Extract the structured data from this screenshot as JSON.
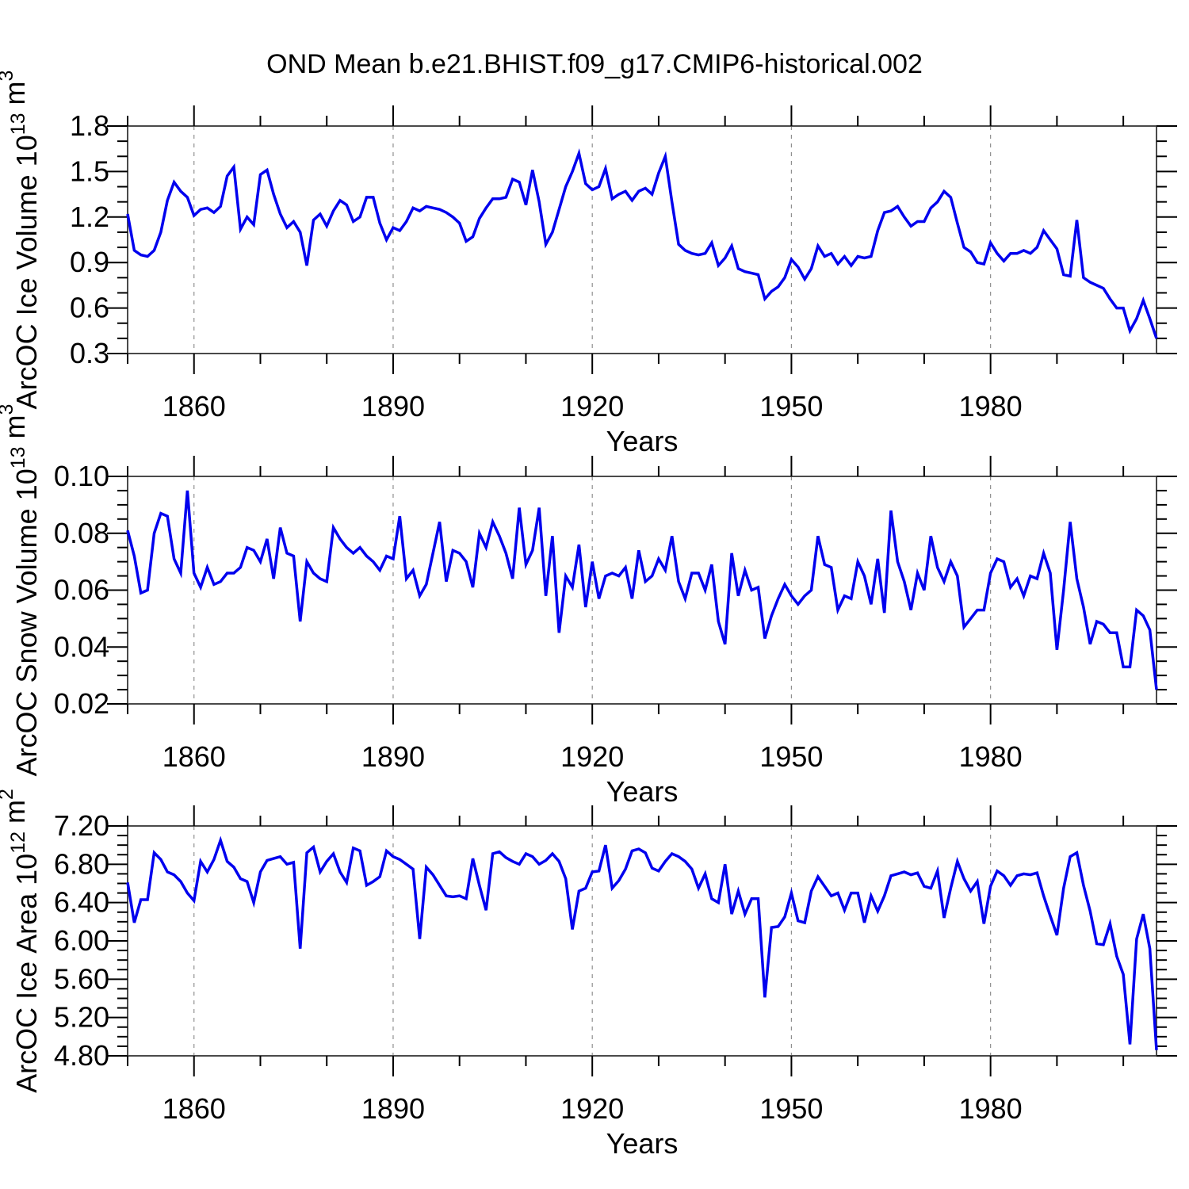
{
  "title": "OND Mean b.e21.BHIST.f09_g17.CMIP6-historical.002",
  "x_axis": {
    "label": "Years",
    "range": [
      1850,
      2005
    ],
    "major_ticks": [
      1860,
      1890,
      1920,
      1950,
      1980
    ],
    "major_tick_labels": [
      "1860",
      "1890",
      "1920",
      "1950",
      "1980"
    ],
    "minor_ticks": [
      1850,
      1870,
      1880,
      1900,
      1910,
      1930,
      1940,
      1960,
      1970,
      1990,
      2000
    ],
    "gridlines_at": [
      1860,
      1890,
      1920,
      1950,
      1980
    ]
  },
  "colors": {
    "line": "#0000ee",
    "grid": "#909090",
    "border": "#4a4a4a",
    "tick": "#000000",
    "text": "#000000"
  },
  "chart_data": [
    {
      "type": "line",
      "title": "OND Mean b.e21.BHIST.f09_g17.CMIP6-historical.002",
      "xlabel": "Years",
      "ylabel": "ArcOC Ice Volume 10^13 m^3",
      "ylabel_rich": [
        [
          "ArcOC Ice Volume 10",
          0
        ],
        [
          "13",
          1
        ],
        [
          " m",
          0
        ],
        [
          "3",
          1
        ]
      ],
      "ylim": [
        0.3,
        1.8
      ],
      "ytick_values": [
        0.3,
        0.6,
        0.9,
        1.2,
        1.5,
        1.8
      ],
      "ytick_labels": [
        "0.3",
        "0.6",
        "0.9",
        "1.2",
        "1.5",
        "1.8"
      ],
      "y_minor_step": 0.1,
      "legend": "none",
      "grid": "vertical-dashed",
      "x": {
        "start": 1850,
        "step": 1
      },
      "values": [
        1.22,
        0.98,
        0.95,
        0.94,
        0.98,
        1.1,
        1.31,
        1.43,
        1.37,
        1.33,
        1.21,
        1.25,
        1.26,
        1.23,
        1.27,
        1.47,
        1.53,
        1.12,
        1.2,
        1.15,
        1.48,
        1.51,
        1.35,
        1.22,
        1.13,
        1.17,
        1.1,
        0.88,
        1.18,
        1.22,
        1.14,
        1.24,
        1.31,
        1.28,
        1.17,
        1.2,
        1.33,
        1.33,
        1.16,
        1.05,
        1.13,
        1.11,
        1.17,
        1.26,
        1.24,
        1.27,
        1.26,
        1.25,
        1.23,
        1.2,
        1.16,
        1.04,
        1.07,
        1.19,
        1.26,
        1.32,
        1.32,
        1.33,
        1.45,
        1.43,
        1.28,
        1.51,
        1.3,
        1.02,
        1.1,
        1.25,
        1.4,
        1.5,
        1.62,
        1.42,
        1.38,
        1.4,
        1.52,
        1.32,
        1.35,
        1.37,
        1.31,
        1.37,
        1.39,
        1.35,
        1.49,
        1.6,
        1.3,
        1.02,
        0.98,
        0.96,
        0.95,
        0.96,
        1.03,
        0.88,
        0.93,
        1.01,
        0.86,
        0.84,
        0.83,
        0.82,
        0.66,
        0.71,
        0.74,
        0.8,
        0.92,
        0.87,
        0.79,
        0.86,
        1.01,
        0.94,
        0.96,
        0.89,
        0.94,
        0.88,
        0.94,
        0.93,
        0.94,
        1.11,
        1.23,
        1.24,
        1.27,
        1.2,
        1.14,
        1.17,
        1.17,
        1.26,
        1.3,
        1.37,
        1.33,
        1.16,
        1.0,
        0.97,
        0.9,
        0.89,
        1.03,
        0.96,
        0.91,
        0.96,
        0.96,
        0.98,
        0.96,
        1.0,
        1.11,
        1.05,
        0.99,
        0.82,
        0.81,
        1.18,
        0.8,
        0.77,
        0.75,
        0.73,
        0.66,
        0.6,
        0.6,
        0.45,
        0.53,
        0.65,
        0.53,
        0.4
      ]
    },
    {
      "type": "line",
      "title": "OND Mean b.e21.BHIST.f09_g17.CMIP6-historical.002",
      "xlabel": "Years",
      "ylabel": "ArcOC Snow Volume 10^13 m^3",
      "ylabel_rich": [
        [
          "ArcOC Snow Volume 10",
          0
        ],
        [
          "13",
          1
        ],
        [
          " m",
          0
        ],
        [
          "3",
          1
        ]
      ],
      "ylim": [
        0.02,
        0.1
      ],
      "ytick_values": [
        0.02,
        0.04,
        0.06,
        0.08,
        0.1
      ],
      "ytick_labels": [
        "0.02",
        "0.04",
        "0.06",
        "0.08",
        "0.10"
      ],
      "y_minor_step": 0.005,
      "legend": "none",
      "grid": "vertical-dashed",
      "x": {
        "start": 1850,
        "step": 1
      },
      "values": [
        0.081,
        0.072,
        0.059,
        0.06,
        0.08,
        0.087,
        0.086,
        0.071,
        0.066,
        0.095,
        0.066,
        0.061,
        0.068,
        0.062,
        0.063,
        0.066,
        0.066,
        0.068,
        0.075,
        0.074,
        0.07,
        0.078,
        0.064,
        0.082,
        0.073,
        0.072,
        0.049,
        0.07,
        0.066,
        0.064,
        0.063,
        0.082,
        0.078,
        0.075,
        0.073,
        0.075,
        0.072,
        0.07,
        0.067,
        0.072,
        0.071,
        0.086,
        0.064,
        0.067,
        0.058,
        0.062,
        0.073,
        0.084,
        0.063,
        0.074,
        0.073,
        0.07,
        0.061,
        0.08,
        0.075,
        0.084,
        0.079,
        0.073,
        0.064,
        0.089,
        0.069,
        0.074,
        0.089,
        0.058,
        0.079,
        0.045,
        0.065,
        0.061,
        0.076,
        0.054,
        0.07,
        0.057,
        0.065,
        0.066,
        0.065,
        0.068,
        0.057,
        0.074,
        0.063,
        0.065,
        0.071,
        0.067,
        0.079,
        0.063,
        0.057,
        0.066,
        0.066,
        0.06,
        0.069,
        0.049,
        0.041,
        0.073,
        0.058,
        0.067,
        0.06,
        0.061,
        0.043,
        0.051,
        0.057,
        0.062,
        0.058,
        0.055,
        0.058,
        0.06,
        0.079,
        0.069,
        0.068,
        0.053,
        0.058,
        0.057,
        0.07,
        0.065,
        0.055,
        0.071,
        0.052,
        0.088,
        0.07,
        0.063,
        0.053,
        0.066,
        0.06,
        0.079,
        0.068,
        0.063,
        0.07,
        0.065,
        0.047,
        0.05,
        0.053,
        0.053,
        0.066,
        0.071,
        0.07,
        0.061,
        0.064,
        0.058,
        0.065,
        0.064,
        0.073,
        0.066,
        0.039,
        0.06,
        0.084,
        0.064,
        0.054,
        0.041,
        0.049,
        0.048,
        0.045,
        0.045,
        0.033,
        0.033,
        0.053,
        0.051,
        0.046,
        0.025
      ]
    },
    {
      "type": "line",
      "title": "OND Mean b.e21.BHIST.f09_g17.CMIP6-historical.002",
      "xlabel": "Years",
      "ylabel": "ArcOC Ice Area 10^12 m^2",
      "ylabel_rich": [
        [
          "ArcOC Ice Area 10",
          0
        ],
        [
          "12",
          1
        ],
        [
          " m",
          0
        ],
        [
          "2",
          1
        ]
      ],
      "ylim": [
        4.8,
        7.2
      ],
      "ytick_values": [
        4.8,
        5.2,
        5.6,
        6.0,
        6.4,
        6.8,
        7.2
      ],
      "ytick_labels": [
        "4.80",
        "5.20",
        "5.60",
        "6.00",
        "6.40",
        "6.80",
        "7.20"
      ],
      "y_minor_step": 0.1,
      "legend": "none",
      "grid": "vertical-dashed",
      "x": {
        "start": 1850,
        "step": 1
      },
      "values": [
        6.61,
        6.19,
        6.43,
        6.43,
        6.92,
        6.85,
        6.72,
        6.69,
        6.62,
        6.5,
        6.42,
        6.83,
        6.72,
        6.85,
        7.05,
        6.83,
        6.77,
        6.65,
        6.62,
        6.4,
        6.72,
        6.84,
        6.86,
        6.88,
        6.8,
        6.82,
        5.92,
        6.92,
        6.98,
        6.72,
        6.83,
        6.91,
        6.72,
        6.61,
        6.97,
        6.94,
        6.58,
        6.62,
        6.67,
        6.94,
        6.88,
        6.85,
        6.8,
        6.75,
        6.02,
        6.77,
        6.69,
        6.58,
        6.47,
        6.46,
        6.47,
        6.44,
        6.86,
        6.58,
        6.32,
        6.91,
        6.93,
        6.87,
        6.83,
        6.8,
        6.91,
        6.88,
        6.8,
        6.84,
        6.91,
        6.83,
        6.65,
        6.12,
        6.52,
        6.55,
        6.72,
        6.73,
        7.0,
        6.55,
        6.63,
        6.75,
        6.94,
        6.96,
        6.92,
        6.76,
        6.73,
        6.83,
        6.91,
        6.88,
        6.83,
        6.75,
        6.55,
        6.7,
        6.44,
        6.4,
        6.8,
        6.28,
        6.52,
        6.28,
        6.44,
        6.44,
        5.41,
        6.14,
        6.15,
        6.25,
        6.5,
        6.21,
        6.19,
        6.52,
        6.67,
        6.57,
        6.47,
        6.5,
        6.32,
        6.5,
        6.5,
        6.19,
        6.47,
        6.31,
        6.47,
        6.68,
        6.7,
        6.72,
        6.69,
        6.71,
        6.57,
        6.55,
        6.73,
        6.24,
        6.55,
        6.83,
        6.65,
        6.52,
        6.62,
        6.18,
        6.57,
        6.73,
        6.68,
        6.58,
        6.68,
        6.7,
        6.69,
        6.71,
        6.47,
        6.26,
        6.06,
        6.55,
        6.88,
        6.92,
        6.58,
        6.31,
        5.97,
        5.96,
        6.18,
        5.84,
        5.65,
        4.92,
        6.02,
        6.28,
        5.92,
        4.86
      ]
    }
  ]
}
